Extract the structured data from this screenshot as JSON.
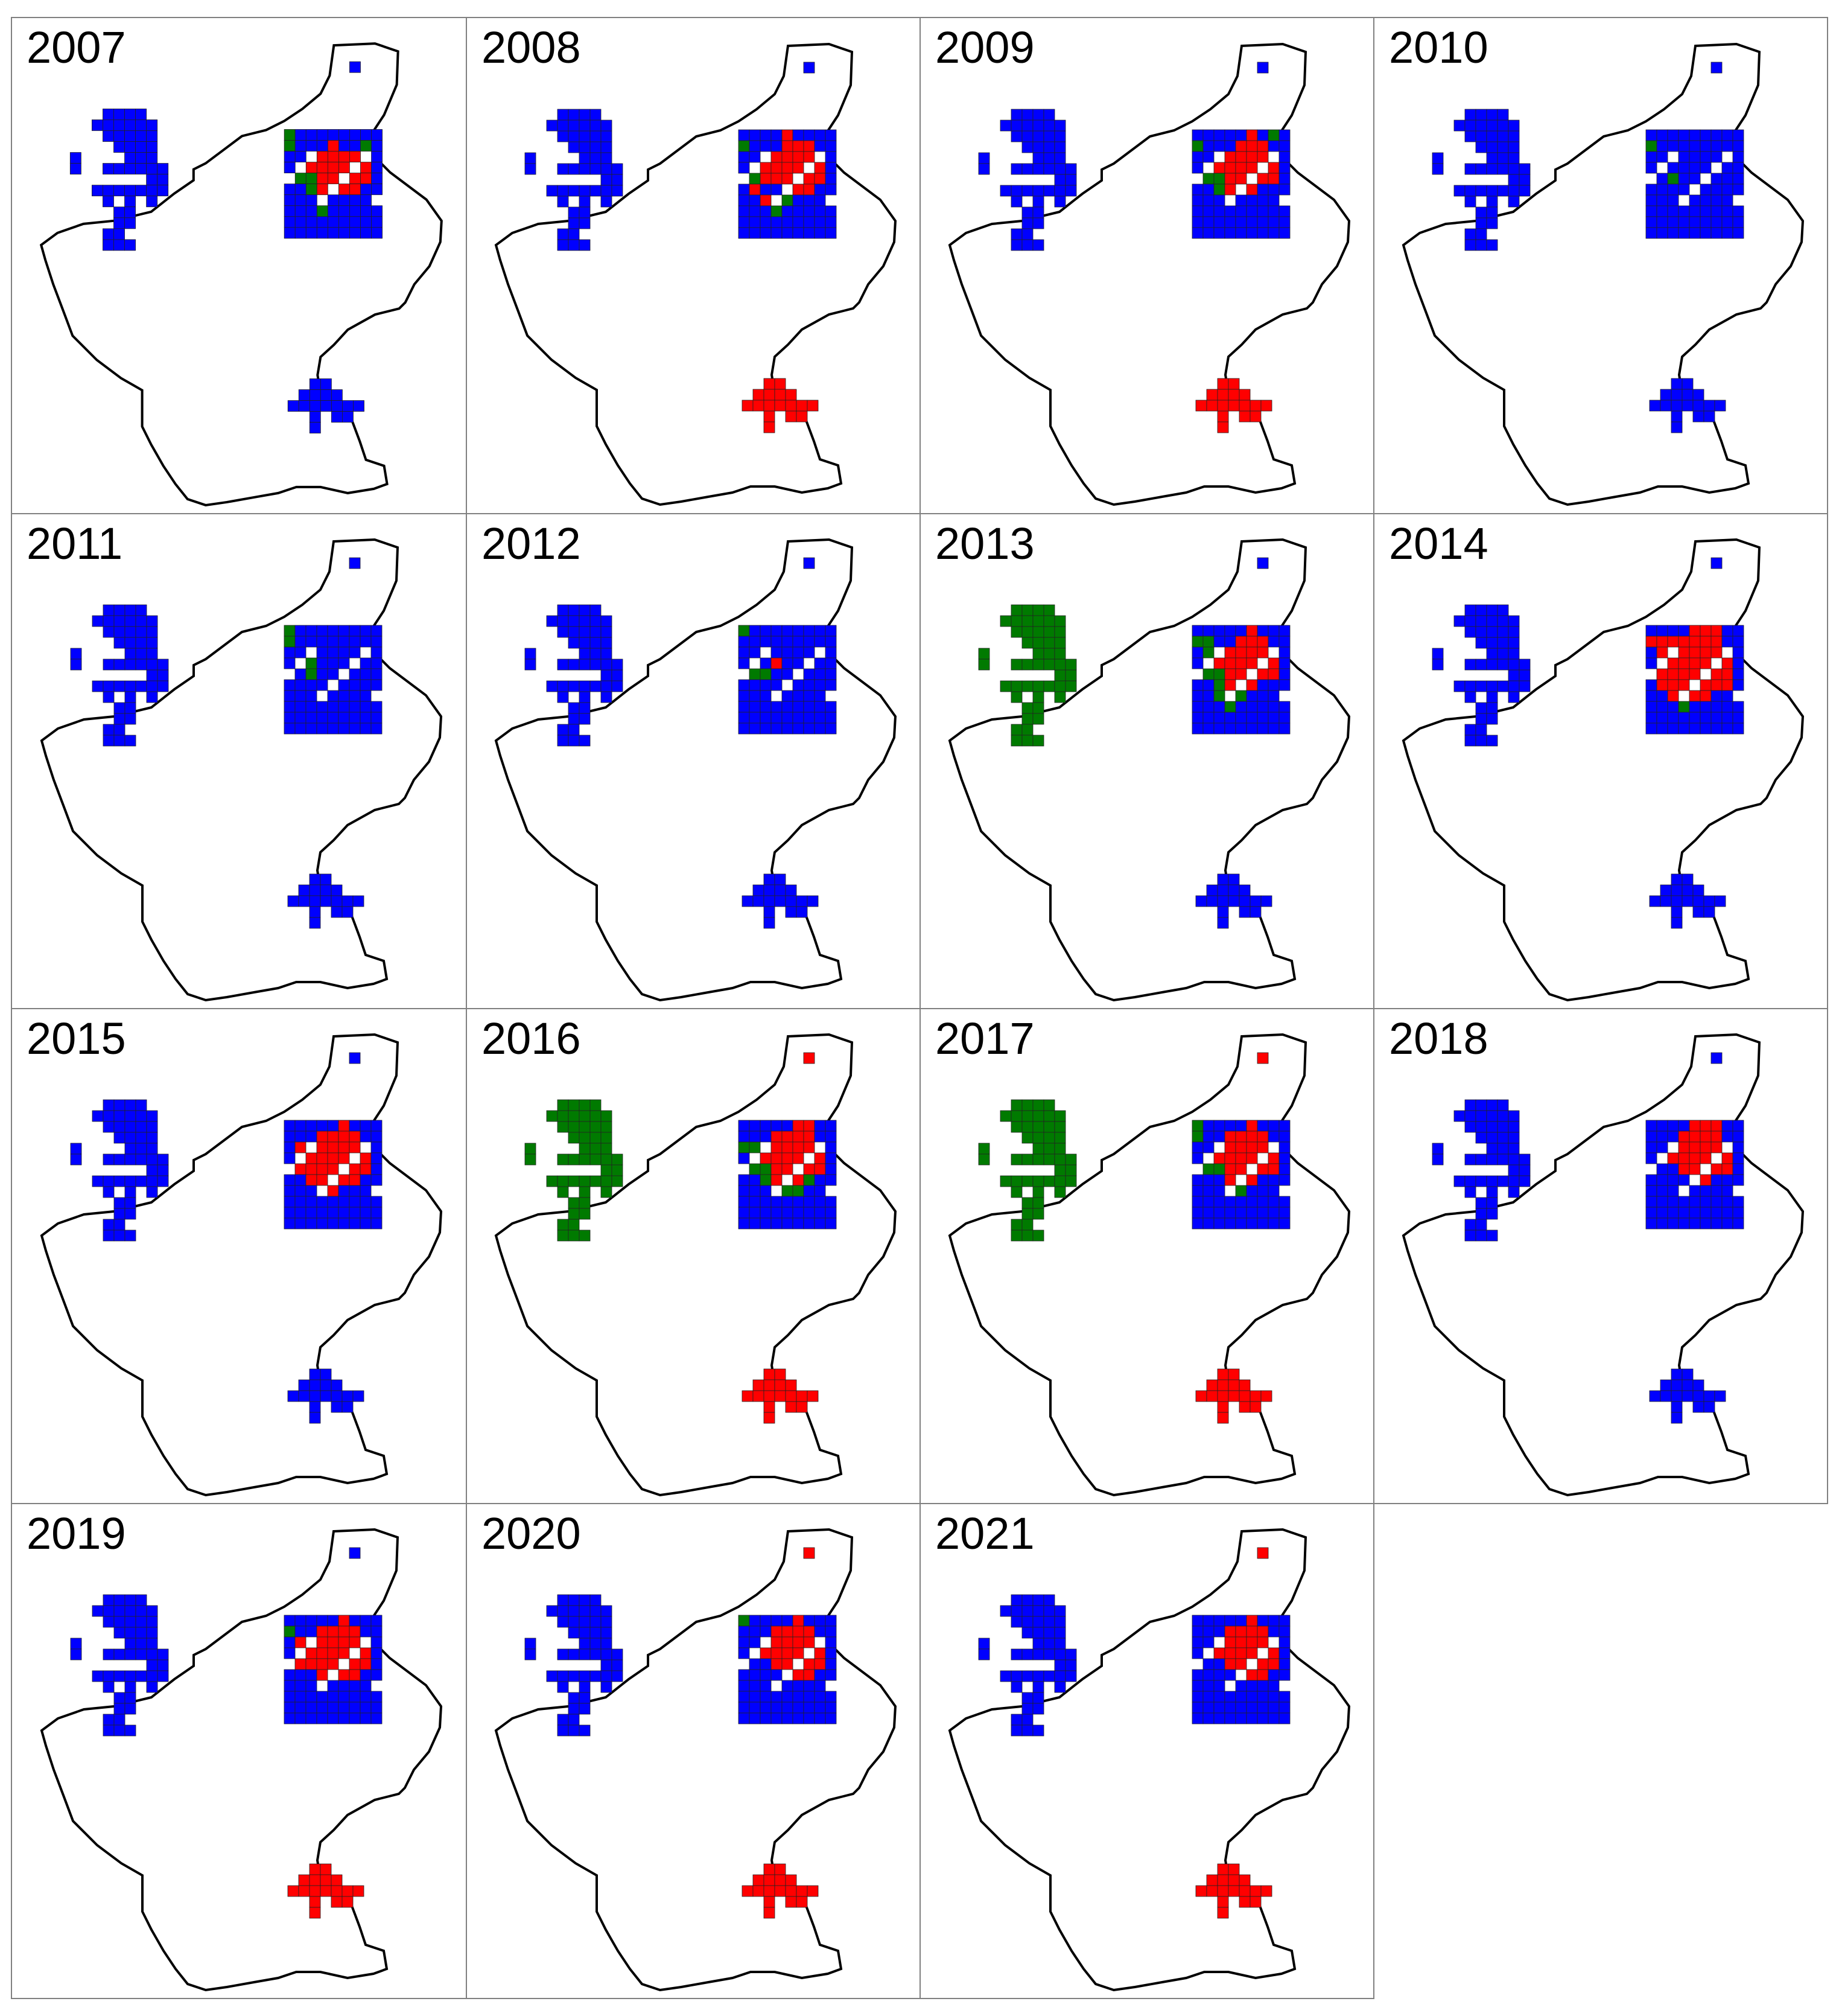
{
  "colors": {
    "blue": "#0000ff",
    "red": "#ff0000",
    "green": "#007a00",
    "outline": "#000000",
    "border": "#808080"
  },
  "panels": [
    {
      "year": "2007",
      "west": "blue",
      "north": "blue",
      "south": "blue",
      "east": [
        "gbbbbbbbb",
        "gbbbrbbgb",
        "bbrrrrrgb",
        "bbrrrrrrb",
        "bggrrrrrb",
        "bbgrrrrbb",
        "bbbbbbbbb",
        "bbbgbbbbb",
        "bbbbbbbbb",
        "bbbbbbbbb"
      ]
    },
    {
      "year": "2008",
      "west": "blue",
      "north": "blue",
      "south": "red",
      "east": [
        "bbbbrbbbb",
        "gbbbrrrbb",
        "bbbrrrrrb",
        "bbrrrrrrb",
        "bgrrrrrrb",
        "brbbrrrbb",
        "bbrrgbbbb",
        "bbbgbbbbb",
        "bbbbbbbbb",
        "bbbbbbbbb"
      ]
    },
    {
      "year": "2009",
      "west": "blue",
      "north": "blue",
      "south": "red",
      "east": [
        "bbbbbrbgb",
        "gbbbrrrbb",
        "bbrrrrrrb",
        "bgrrrrrrb",
        "bggrrrrrb",
        "bbgrrrbbb",
        "bbbbbbbbb",
        "bbbbbbbbb",
        "bbbbbbbbb",
        "bbbbbbbbb"
      ]
    },
    {
      "year": "2010",
      "west": "blue",
      "north": "blue",
      "south": "blue",
      "east": [
        "bbbbbbbbb",
        "gbbbbbbbb",
        "bbbbbbbbb",
        "bbbbbbbbb",
        "bbgbbbbbb",
        "bbbbbbbbb",
        "bbbgbbbbb",
        "bbbbbbbbb",
        "bbbbbbbbb",
        "bbbbbbbbb"
      ]
    },
    {
      "year": "2011",
      "west": "blue",
      "north": "blue",
      "south": "blue",
      "east": [
        "gbbbbbbbb",
        "gbbbbbbbb",
        "bbbbbbbbb",
        "bbgbbbbbb",
        "bbgbbbbbb",
        "bbbbbbbbb",
        "bbbgbbbbb",
        "bbbbbbbbb",
        "bbbbbbbbb",
        "bbbbbbbbb"
      ]
    },
    {
      "year": "2012",
      "west": "blue",
      "north": "blue",
      "south": "blue",
      "east": [
        "gbbbbbbbb",
        "bbbbbbbbb",
        "bbbbbbbbb",
        "bbbrbbbbb",
        "bggbbbbbb",
        "bbbbbbbbb",
        "bbbbbbbbb",
        "bbbbbbbbb",
        "bbbbbbbbb",
        "bbbbbbbbb"
      ]
    },
    {
      "year": "2013",
      "west": "green",
      "north": "blue",
      "south": "blue",
      "east": [
        "bbbbbrbbb",
        "ggbbrrrbb",
        "bgrrrrrrb",
        "bgrrrrrrb",
        "bggrrrrrb",
        "bbgrrrbbb",
        "bbgggbbbb",
        "bbbgbbbbb",
        "bbbbbbbbb",
        "bbbbbbbbb"
      ]
    },
    {
      "year": "2014",
      "west": "blue",
      "north": "blue",
      "south": "blue",
      "east": [
        "bbbbrrrbb",
        "rrrrrrrbb",
        "brrrrrrrb",
        "brrrrrrrb",
        "brrrrrrrb",
        "brrrrrrrb",
        "bbrrrrbbb",
        "bbbgbbbbb",
        "bbbbbbbbb",
        "bbbbbbbbb"
      ]
    },
    {
      "year": "2015",
      "west": "blue",
      "north": "blue",
      "south": "blue",
      "east": [
        "bbbbbrbbb",
        "bbbrrrrbb",
        "brrrrrrrb",
        "brrrrrrrb",
        "brrrrrrrb",
        "bbrrrrrbb",
        "bbbrrbbbb",
        "bbbbbbbbb",
        "bbbbbbbbb",
        "bbbbbbbbb"
      ]
    },
    {
      "year": "2016",
      "west": "green",
      "north": "red",
      "south": "red",
      "east": [
        "bbbbbrrbb",
        "bbbrrrrbb",
        "ggrrrrrrb",
        "bgrrrrrrb",
        "bggrrrrrb",
        "bbgrrrgbb",
        "bbbgggbbb",
        "bbbbbbbbb",
        "bbbbbbbbb",
        "bbbbbbbbb"
      ]
    },
    {
      "year": "2017",
      "west": "green",
      "north": "red",
      "south": "red",
      "east": [
        "gbbbbrbbb",
        "gbbrrrrbb",
        "bbrrrrrrb",
        "bgrrrrrrb",
        "bggrrrrrb",
        "bbbrrrbbb",
        "bbbggbbbb",
        "bbbbbbbbb",
        "bbbbbbbbb",
        "bbbbbbbbb"
      ]
    },
    {
      "year": "2018",
      "west": "blue",
      "north": "blue",
      "south": "blue",
      "east": [
        "bbbbrrrbb",
        "bbbrrrrbb",
        "bbrrrrrrb",
        "bbrrrrrrb",
        "bbbrrrrrb",
        "bbbbrrbbb",
        "bbbbbbbbb",
        "bbbbbbbbb",
        "bbbbbbbbb",
        "bbbbbbbbb"
      ]
    },
    {
      "year": "2019",
      "west": "blue",
      "north": "blue",
      "south": "red",
      "east": [
        "bbbbbrbbb",
        "gbbrrrrbb",
        "brrrrrrrb",
        "brrrrrrrb",
        "brrrrrrrb",
        "bbbrrrrbb",
        "bbbbbbbbb",
        "bbbbbbbbb",
        "bbbbbbbbb",
        "bbbbbbbbb"
      ]
    },
    {
      "year": "2020",
      "west": "blue",
      "north": "red",
      "south": "red",
      "east": [
        "gbbbbrbbb",
        "bbbrrrrbb",
        "bbrrrrrrb",
        "bbrrrrrrb",
        "bbbrrrrrb",
        "bbbbrrrbb",
        "bbbbbbbbb",
        "bbbbbbbbb",
        "bbbbbbbbb",
        "bbbbbbbbb"
      ]
    },
    {
      "year": "2021",
      "west": "blue",
      "north": "red",
      "south": "red",
      "east": [
        "bbbbbrbbb",
        "bbbrrrrbb",
        "bbrrrrrrb",
        "bbrrrrrrb",
        "bbbrrrrrb",
        "bbbbrrrbb",
        "bbbbbbbbb",
        "bbbbbbbbb",
        "bbbbbbbbb",
        "bbbbbbbbb"
      ]
    }
  ]
}
